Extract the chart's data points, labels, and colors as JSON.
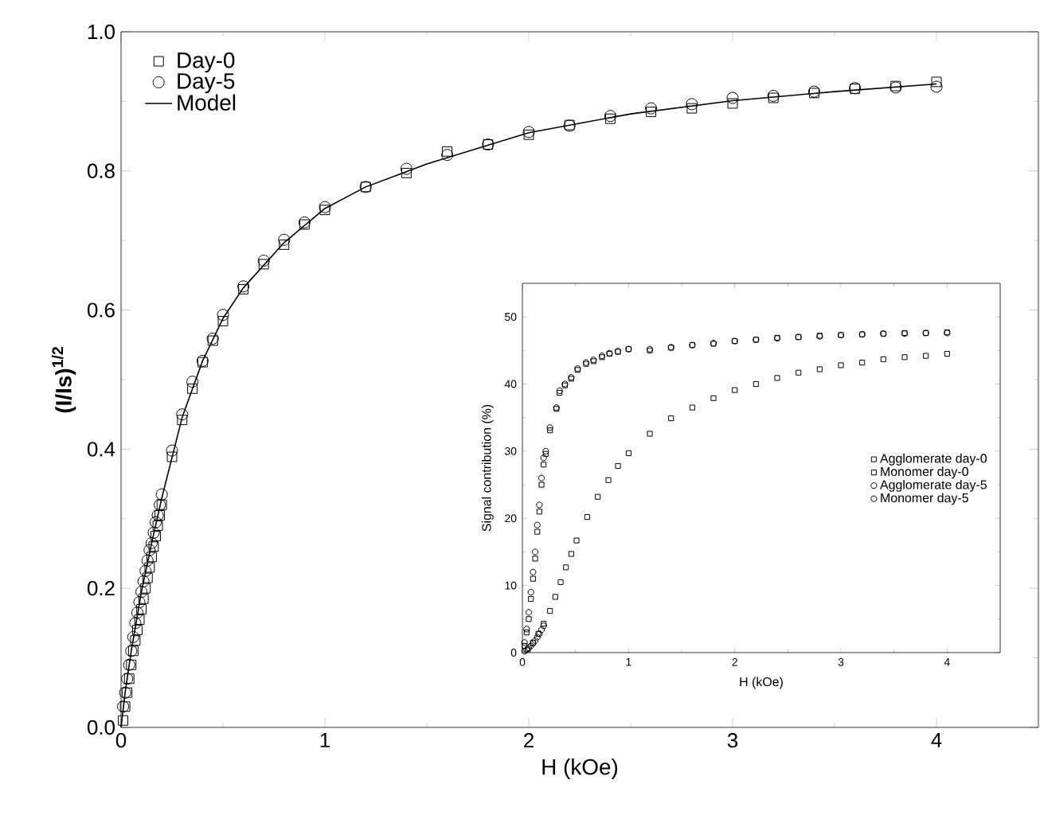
{
  "chart_data": [
    {
      "type": "scatter",
      "xlabel": "H (kOe)",
      "ylabel": "(I/Is)$^{1/2}$",
      "xlim": [
        0,
        4.5
      ],
      "ylim": [
        0,
        1.0
      ],
      "xticks": [
        0,
        1,
        2,
        3,
        4
      ],
      "yticks": [
        {
          "value": 0,
          "label": "0.0"
        },
        {
          "value": 0.2,
          "label": "0.2"
        },
        {
          "value": 0.4,
          "label": "0.4"
        },
        {
          "value": 0.6,
          "label": "0.6"
        },
        {
          "value": 0.8,
          "label": "0.8"
        },
        {
          "value": 1.0,
          "label": "1.0"
        }
      ],
      "legend": "top left",
      "tick_labels": "xy",
      "series": [
        {
          "name": "Day-0",
          "color": "#000000",
          "marker": "square",
          "x": [
            0.01,
            0.02,
            0.03,
            0.04,
            0.05,
            0.06,
            0.07,
            0.08,
            0.09,
            0.1,
            0.11,
            0.12,
            0.13,
            0.14,
            0.15,
            0.16,
            0.17,
            0.18,
            0.19,
            0.2,
            0.25,
            0.3,
            0.35,
            0.4,
            0.45,
            0.5,
            0.6,
            0.7,
            0.8,
            0.9,
            1.0,
            1.2,
            1.4,
            1.6,
            1.8,
            2.0,
            2.2,
            2.4,
            2.6,
            2.8,
            3.0,
            3.2,
            3.4,
            3.6,
            3.8,
            4.0
          ],
          "values": [
            0.01,
            0.03,
            0.05,
            0.07,
            0.09,
            0.11,
            0.125,
            0.14,
            0.155,
            0.17,
            0.185,
            0.2,
            0.215,
            0.23,
            0.245,
            0.26,
            0.275,
            0.29,
            0.305,
            0.32,
            0.389,
            0.442,
            0.487,
            0.525,
            0.556,
            0.584,
            0.63,
            0.666,
            0.694,
            0.723,
            0.744,
            0.777,
            0.797,
            0.828,
            0.838,
            0.852,
            0.866,
            0.875,
            0.885,
            0.89,
            0.897,
            0.905,
            0.912,
            0.918,
            0.922,
            0.928
          ]
        },
        {
          "name": "Day-5",
          "color": "#000000",
          "marker": "circle",
          "x": [
            0.01,
            0.02,
            0.03,
            0.04,
            0.05,
            0.06,
            0.07,
            0.08,
            0.09,
            0.1,
            0.11,
            0.12,
            0.13,
            0.14,
            0.15,
            0.16,
            0.17,
            0.18,
            0.19,
            0.2,
            0.25,
            0.3,
            0.35,
            0.4,
            0.45,
            0.5,
            0.6,
            0.7,
            0.8,
            0.9,
            1.0,
            1.2,
            1.4,
            1.6,
            1.8,
            2.0,
            2.2,
            2.4,
            2.6,
            2.8,
            3.0,
            3.2,
            3.4,
            3.6,
            3.8,
            4.0
          ],
          "values": [
            0.03,
            0.05,
            0.07,
            0.09,
            0.11,
            0.13,
            0.15,
            0.165,
            0.18,
            0.195,
            0.21,
            0.225,
            0.24,
            0.255,
            0.265,
            0.28,
            0.295,
            0.305,
            0.32,
            0.335,
            0.398,
            0.45,
            0.497,
            0.527,
            0.559,
            0.593,
            0.634,
            0.671,
            0.701,
            0.726,
            0.748,
            0.777,
            0.803,
            0.823,
            0.838,
            0.856,
            0.865,
            0.879,
            0.89,
            0.896,
            0.905,
            0.908,
            0.914,
            0.919,
            0.92,
            0.921
          ]
        },
        {
          "name": "Model",
          "color": "#000000",
          "type": "line",
          "marker": "none",
          "x": [
            0,
            0.02,
            0.05,
            0.1,
            0.15,
            0.2,
            0.3,
            0.4,
            0.5,
            0.6,
            0.8,
            1.0,
            1.2,
            1.5,
            2.0,
            2.5,
            3.0,
            3.5,
            4.0
          ],
          "values": [
            0,
            0.05,
            0.11,
            0.195,
            0.265,
            0.33,
            0.446,
            0.527,
            0.588,
            0.632,
            0.697,
            0.746,
            0.777,
            0.81,
            0.855,
            0.882,
            0.901,
            0.914,
            0.925
          ]
        }
      ]
    },
    {
      "type": "scatter",
      "xlabel": "H (kOe)",
      "ylabel": "Signal contribution (%)",
      "xlim": [
        0,
        4.5
      ],
      "ylim": [
        0,
        55
      ],
      "xticks": [
        0,
        1,
        2,
        3,
        4
      ],
      "yticks": [
        0,
        10,
        20,
        30,
        40,
        50
      ],
      "legend": "right",
      "series": [
        {
          "name": "Agglomerate day-0",
          "color": "#000000",
          "marker": "square",
          "x": [
            0.02,
            0.04,
            0.06,
            0.08,
            0.1,
            0.12,
            0.14,
            0.16,
            0.18,
            0.2,
            0.22,
            0.26,
            0.32,
            0.35,
            0.4,
            0.46,
            0.52,
            0.6,
            0.67,
            0.75,
            0.82,
            0.9,
            1.0,
            1.2,
            1.4,
            1.6,
            1.8,
            2.0,
            2.2,
            2.4,
            2.6,
            2.8,
            3.0,
            3.2,
            3.4,
            3.6,
            3.8,
            4.0
          ],
          "values": [
            1,
            3,
            5,
            8,
            11,
            14,
            18,
            21,
            25,
            28,
            29.6,
            33.1,
            36.3,
            38.7,
            39.8,
            40.8,
            42.1,
            43.0,
            43.4,
            44.0,
            44.5,
            44.8,
            45.2,
            45.0,
            45.4,
            45.8,
            46.0,
            46.4,
            46.6,
            46.9,
            47.0,
            47.2,
            47.3,
            47.4,
            47.5,
            47.6,
            47.6,
            47.7
          ]
        },
        {
          "name": "Monomer day-0",
          "color": "#000000",
          "marker": "square",
          "x": [
            0.05,
            0.1,
            0.15,
            0.2,
            0.26,
            0.31,
            0.36,
            0.41,
            0.46,
            0.51,
            0.61,
            0.71,
            0.81,
            0.9,
            1.0,
            1.2,
            1.4,
            1.6,
            1.8,
            2.0,
            2.2,
            2.4,
            2.6,
            2.8,
            3.0,
            3.2,
            3.4,
            3.6,
            3.8,
            4.0
          ],
          "values": [
            0.5,
            1.5,
            2.8,
            4.3,
            6.2,
            8.3,
            10.5,
            12.7,
            14.7,
            16.7,
            20.2,
            23.2,
            25.7,
            27.8,
            29.7,
            32.6,
            34.9,
            36.5,
            37.9,
            39.1,
            40.0,
            40.9,
            41.7,
            42.2,
            42.8,
            43.2,
            43.7,
            44.0,
            44.2,
            44.5
          ]
        },
        {
          "name": "Agglomerate day-5",
          "color": "#000000",
          "marker": "circle",
          "x": [
            0.02,
            0.04,
            0.06,
            0.08,
            0.1,
            0.12,
            0.14,
            0.16,
            0.18,
            0.2,
            0.22,
            0.26,
            0.32,
            0.35,
            0.4,
            0.46,
            0.52,
            0.6,
            0.67,
            0.75,
            0.82,
            0.9,
            1.0,
            1.2,
            1.4,
            1.6,
            1.8,
            2.0,
            2.2,
            2.4,
            2.6,
            2.8,
            3.0,
            3.2,
            3.4,
            3.6,
            3.8,
            4.0
          ],
          "values": [
            1.5,
            3.5,
            6,
            9,
            12,
            15,
            19,
            22,
            26,
            29,
            30,
            33.5,
            36.5,
            39,
            40,
            41,
            42.3,
            43.2,
            43.6,
            44.2,
            44.6,
            44.9,
            45.2,
            45.2,
            45.5,
            45.8,
            46.1,
            46.4,
            46.6,
            46.8,
            47.0,
            47.1,
            47.3,
            47.4,
            47.5,
            47.5,
            47.6,
            47.6
          ]
        },
        {
          "name": "Monomer  day-5",
          "color": "#000000",
          "marker": "circle",
          "x": [
            0.02,
            0.04,
            0.06,
            0.08,
            0.1,
            0.12,
            0.14,
            0.16,
            0.18,
            0.2
          ],
          "values": [
            0.2,
            0.4,
            0.7,
            1.0,
            1.4,
            1.8,
            2.3,
            2.8,
            3.4,
            4.0
          ]
        }
      ]
    }
  ]
}
